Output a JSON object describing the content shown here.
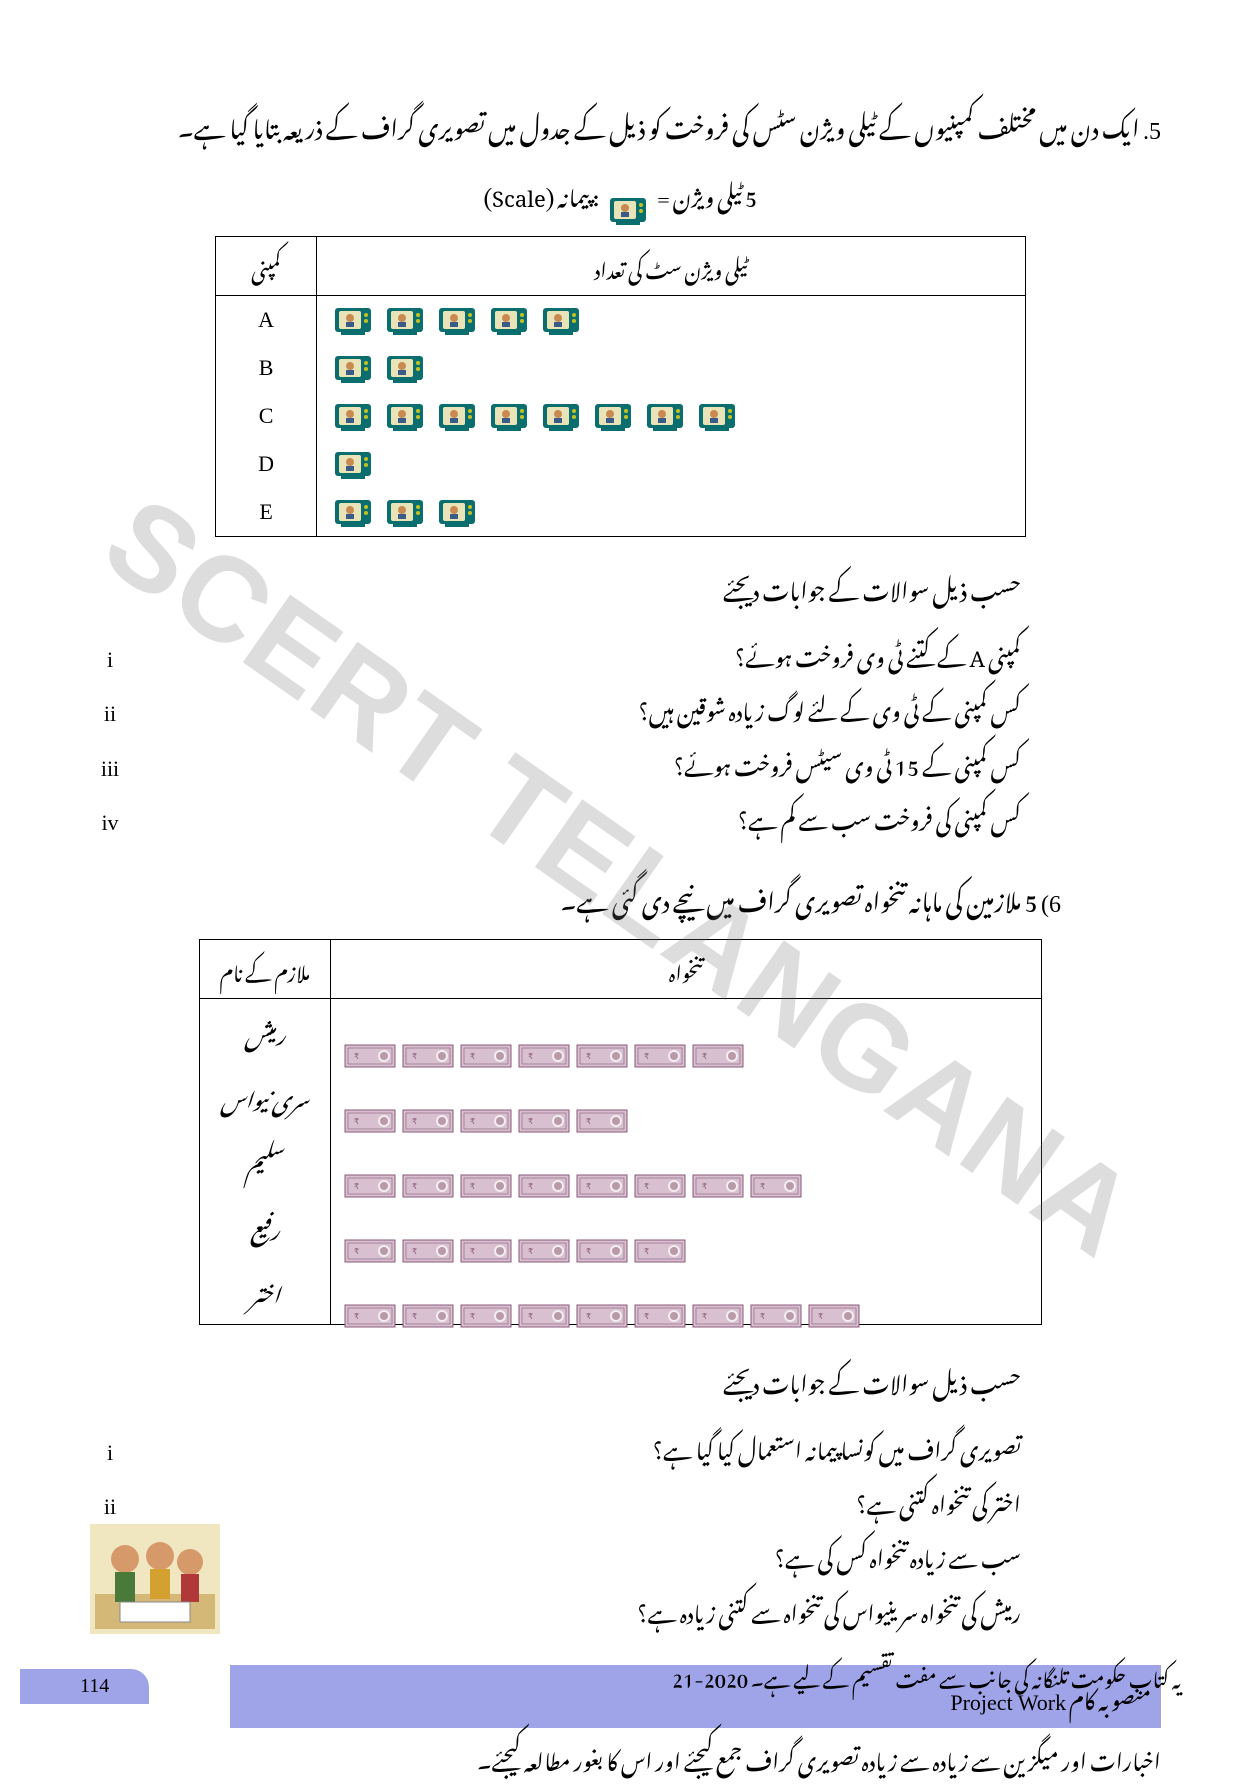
{
  "watermark": "SCERT TELANGANA",
  "q5": {
    "num": ".5",
    "text": "ایک دن میں مختلف کمپنیوں کے ٹیلی ویژن سٹس کی فروخت کو ذیل کے جدول میں تصویری گراف کے ذریعہ بتایا گیا ہے۔",
    "scale_prefix": "5 ٹیلی ویژن =",
    "scale_suffix": ": پیمانہ (Scale)"
  },
  "tv_table": {
    "col_company": "کمپنی",
    "col_count": "ٹیلی ویژن سٹ کی تعداد",
    "rows": [
      {
        "label": "A",
        "count": 5
      },
      {
        "label": "B",
        "count": 2
      },
      {
        "label": "C",
        "count": 8
      },
      {
        "label": "D",
        "count": 1
      },
      {
        "label": "E",
        "count": 3
      }
    ],
    "icon_colors": {
      "body": "#0b6e6e",
      "screen": "#e8e4b8",
      "face": "#c98a52"
    }
  },
  "q5_sub_heading": "حسب ذیل سوالات کے جوابات دیجئے",
  "q5_subs": [
    {
      "m": "i",
      "t": "کمپنی A کے کتنے ٹی وی فروخت ہوئے؟"
    },
    {
      "m": "ii",
      "t": "کس کمپنی کے ٹی وی کے لئے لوگ زیادہ شوقین ہیں؟"
    },
    {
      "m": "iii",
      "t": "کس کمپنی کے 15 ٹی وی سیٹس فروخت ہوئے؟"
    },
    {
      "m": "iv",
      "t": "کس کمپنی کی فروخت سب سے کم ہے؟"
    }
  ],
  "q6": {
    "num": "(6",
    "text": "5 ملازمین کی ماہانہ تنخواہ تصویری گراف میں نیچے دی گئی ہے۔"
  },
  "salary_table": {
    "col_name": "ملازم کے نام",
    "col_salary": "تنخواہ",
    "rows": [
      {
        "name": "رمیش",
        "count": 7
      },
      {
        "name": "سری نیواس",
        "count": 5
      },
      {
        "name": "سلیم",
        "count": 8
      },
      {
        "name": "رفیع",
        "count": 6
      },
      {
        "name": "اختر",
        "count": 9
      }
    ],
    "note_colors": {
      "bg": "#d8c0d0",
      "border": "#8a5a7a"
    }
  },
  "q6_sub_heading": "حسب ذیل سوالات کے جوابات دیجئے",
  "q6_subs": [
    {
      "m": "i",
      "t": "تصویری گراف میں کونسا پیمانہ استعمال کیا گیا ہے؟"
    },
    {
      "m": "ii",
      "t": "اختر کی تنخواہ کتنی ہے؟"
    },
    {
      "m": "iii",
      "t": "سب سے زیادہ تنخواہ کس کی ہے؟"
    },
    {
      "m": "iv",
      "t": "رمیش کی تنخواہ سرینیواس کی تنخواہ سے کتنی زیادہ ہے؟"
    }
  ],
  "project": {
    "label_ur": "منصوبہ کام",
    "label_en": "Project Work",
    "text": "اخبارات اور میگزین سے زیادہ سے زیادہ تصویری گراف جمع کیجئے اور اس کا بغور مطالعہ کیجئے۔"
  },
  "footer": {
    "page": "114",
    "text": "یہ کتاب حکومت تلنگانہ کی جانب سے مفت تقسیم کے لیے ہے۔  2020-21"
  }
}
